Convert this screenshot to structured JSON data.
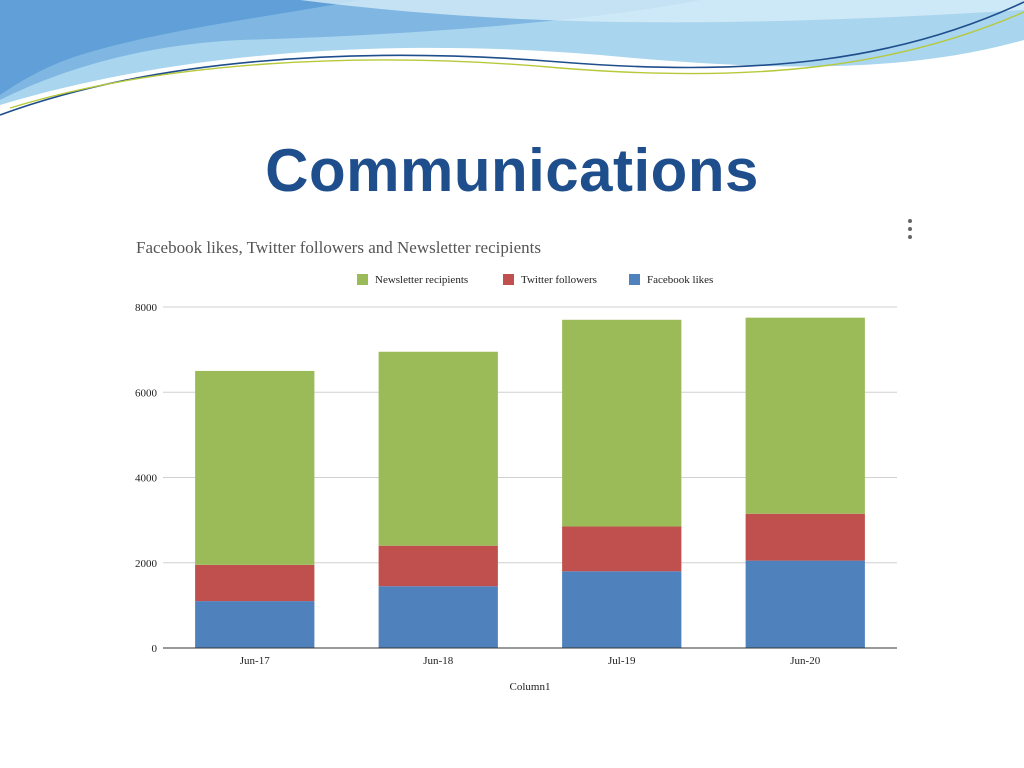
{
  "slide": {
    "title": "Communications"
  },
  "theme": {
    "title_color": "#1f4e8c",
    "banner_light": "#a9d5ee",
    "banner_mid": "#7fb7e2",
    "banner_dark": "#3f84c6",
    "banner_line_green": "#b7c93a",
    "banner_line_navy": "#1f4e8c"
  },
  "chart_menu": {
    "icon": "more-vert-icon"
  },
  "chart_data": {
    "type": "bar",
    "stacked": true,
    "title": "Facebook likes, Twitter followers and Newsletter recipients",
    "xlabel": "Column1",
    "ylabel": "",
    "categories": [
      "Jun-17",
      "Jun-18",
      "Jul-19",
      "Jun-20"
    ],
    "ylim": [
      0,
      8000
    ],
    "yticks": [
      0,
      2000,
      4000,
      6000,
      8000
    ],
    "grid": true,
    "legend_position": "top",
    "legend_order": [
      "Newsletter recipients",
      "Twitter followers",
      "Facebook likes"
    ],
    "series": [
      {
        "name": "Facebook likes",
        "color": "#4f81bd",
        "values": [
          1100,
          1450,
          1800,
          2050
        ]
      },
      {
        "name": "Twitter followers",
        "color": "#c0504d",
        "values": [
          850,
          950,
          1050,
          1100
        ]
      },
      {
        "name": "Newsletter recipients",
        "color": "#9bbb59",
        "values": [
          4550,
          4550,
          4850,
          4600
        ]
      }
    ]
  }
}
